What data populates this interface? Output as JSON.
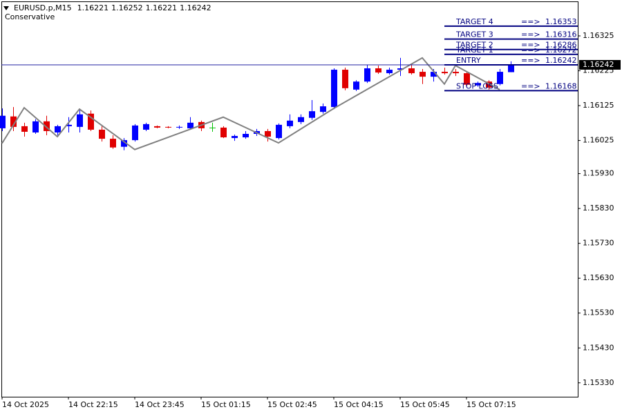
{
  "chart_data": {
    "type": "candlestick",
    "symbol": "EURUSD.p,M15",
    "categories": [
      "14 Oct 2025",
      null,
      null,
      null,
      null,
      null,
      "14 Oct 22:15",
      null,
      null,
      null,
      null,
      null,
      "14 Oct 23:45",
      null,
      null,
      null,
      null,
      null,
      "15 Oct 01:15",
      null,
      null,
      null,
      null,
      null,
      "15 Oct 02:45",
      null,
      null,
      null,
      null,
      null,
      "15 Oct 04:15",
      null,
      null,
      null,
      null,
      null,
      "15 Oct 05:45",
      null,
      null,
      null,
      null,
      null,
      "15 Oct 07:15",
      null,
      null,
      null,
      null
    ],
    "open": [
      1.1606,
      1.16094,
      1.16066,
      1.16048,
      1.1608,
      1.16048,
      1.16066,
      1.16064,
      1.16102,
      1.16056,
      1.1603,
      1.16007,
      1.16026,
      1.16056,
      1.16066,
      1.16064,
      1.16062,
      1.1606,
      1.16078,
      1.16062,
      1.16062,
      1.16032,
      1.16034,
      1.16044,
      1.16052,
      1.16032,
      1.16066,
      1.16078,
      1.1609,
      1.16107,
      1.16121,
      1.16228,
      1.16171,
      1.16194,
      1.16232,
      1.16218,
      1.16228,
      1.16232,
      1.16222,
      1.16208,
      1.16222,
      1.16222,
      1.16218,
      1.16183,
      1.16194,
      1.16187,
      1.16221
    ],
    "high": [
      1.16117,
      1.16121,
      1.16076,
      1.16086,
      1.16096,
      1.1607,
      1.16092,
      1.16115,
      1.16111,
      1.16066,
      1.1604,
      1.16032,
      1.16072,
      1.16076,
      1.16068,
      1.16066,
      1.16068,
      1.16092,
      1.16082,
      1.16076,
      1.16066,
      1.16042,
      1.16052,
      1.16058,
      1.16058,
      1.16074,
      1.161,
      1.161,
      1.16141,
      1.16131,
      1.16232,
      1.16234,
      1.16198,
      1.16242,
      1.1624,
      1.16234,
      1.16262,
      1.16244,
      1.1623,
      1.1623,
      1.16234,
      1.1623,
      1.16224,
      1.16194,
      1.16198,
      1.1623,
      1.16252
    ],
    "low": [
      1.16052,
      1.16052,
      1.16036,
      1.16044,
      1.1604,
      1.16038,
      1.16048,
      1.16048,
      1.16052,
      1.16022,
      1.16001,
      1.15997,
      1.16022,
      1.16052,
      1.1606,
      1.1606,
      1.16058,
      1.16056,
      1.16052,
      1.1605,
      1.16032,
      1.16024,
      1.1603,
      1.16038,
      1.16022,
      1.16028,
      1.1606,
      1.16072,
      1.16084,
      1.16102,
      1.16115,
      1.16169,
      1.16167,
      1.1619,
      1.16216,
      1.16214,
      1.1621,
      1.16214,
      1.16187,
      1.16194,
      1.16214,
      1.1621,
      1.16181,
      1.16179,
      1.16171,
      1.16183,
      1.16221
    ],
    "close": [
      1.16096,
      1.16064,
      1.1605,
      1.1608,
      1.16052,
      1.16066,
      1.1607,
      1.161,
      1.16056,
      1.1603,
      1.16005,
      1.16026,
      1.16068,
      1.16072,
      1.16062,
      1.16062,
      1.16064,
      1.16076,
      1.1606,
      1.16062,
      1.16034,
      1.16038,
      1.16044,
      1.16052,
      1.16036,
      1.1607,
      1.16082,
      1.16092,
      1.16109,
      1.16123,
      1.16228,
      1.16175,
      1.16194,
      1.16232,
      1.1622,
      1.16228,
      1.16232,
      1.16218,
      1.16208,
      1.16222,
      1.16218,
      1.16218,
      1.16185,
      1.1619,
      1.16177,
      1.16222,
      1.16242
    ],
    "up_color": "#0000ff",
    "down_color": "#e00000",
    "doji_color": "#00c000",
    "ylim": [
      1.1529,
      1.16424
    ],
    "yticks": [
      1.16325,
      1.16225,
      1.16125,
      1.16025,
      {
        "value": 1.1593,
        "label": "1.15930"
      },
      {
        "value": 1.1583,
        "label": "1.15830"
      },
      {
        "value": 1.1573,
        "label": "1.15730"
      },
      {
        "value": 1.1563,
        "label": "1.15630"
      },
      {
        "value": 1.1553,
        "label": "1.15530"
      },
      {
        "value": 1.1543,
        "label": "1.15430"
      },
      {
        "value": 1.1533,
        "label": "1.15330"
      }
    ],
    "zigzag": {
      "name": "Conservative",
      "color": "#808080",
      "x": [
        0,
        2,
        5,
        7,
        12,
        20,
        25,
        30,
        38,
        40,
        41,
        45
      ],
      "values": [
        1.16017,
        1.16119,
        1.16036,
        1.16115,
        1.15999,
        1.16092,
        1.16018,
        1.16117,
        1.16262,
        1.16187,
        1.1624,
        1.16171
      ]
    },
    "price_line_color": "#2020a0",
    "level_color": "#000080",
    "levels": [
      {
        "label": "TARGET 4",
        "arrow": "==>",
        "value": 1.16353
      },
      {
        "label": "TARGET 3",
        "arrow": "==>",
        "value": 1.16316
      },
      {
        "label": "TARGET 2",
        "arrow": "==>",
        "value": 1.16286
      },
      {
        "label": "TARGET 1",
        "arrow": "==>",
        "value": 1.16272
      },
      {
        "label": "ENTRY",
        "arrow": "==>",
        "value": 1.16242
      },
      {
        "label": "STOP LOSS",
        "arrow": "==>",
        "value": 1.16168
      }
    ]
  }
}
